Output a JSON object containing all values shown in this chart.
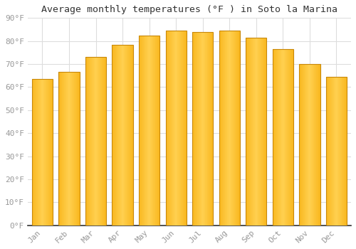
{
  "title": "Average monthly temperatures (°F ) in Soto la Marina",
  "months": [
    "Jan",
    "Feb",
    "Mar",
    "Apr",
    "May",
    "Jun",
    "Jul",
    "Aug",
    "Sep",
    "Oct",
    "Nov",
    "Dec"
  ],
  "values": [
    63.5,
    66.5,
    73,
    78.5,
    82.5,
    84.5,
    84,
    84.5,
    81.5,
    76.5,
    70,
    64.5
  ],
  "bar_color_left": "#F5A800",
  "bar_color_center": "#FFD060",
  "bar_color_right": "#F5A800",
  "bar_edge_color": "#C8880A",
  "background_color": "#FFFFFF",
  "plot_bg_color": "#FFFFFF",
  "title_fontsize": 9.5,
  "tick_fontsize": 8,
  "ytick_labels": [
    "0°F",
    "10°F",
    "20°F",
    "30°F",
    "40°F",
    "50°F",
    "60°F",
    "70°F",
    "80°F",
    "90°F"
  ],
  "ytick_values": [
    0,
    10,
    20,
    30,
    40,
    50,
    60,
    70,
    80,
    90
  ],
  "ylim": [
    0,
    90
  ],
  "grid_color": "#DDDDDD",
  "tick_color": "#999999",
  "font_family": "monospace"
}
